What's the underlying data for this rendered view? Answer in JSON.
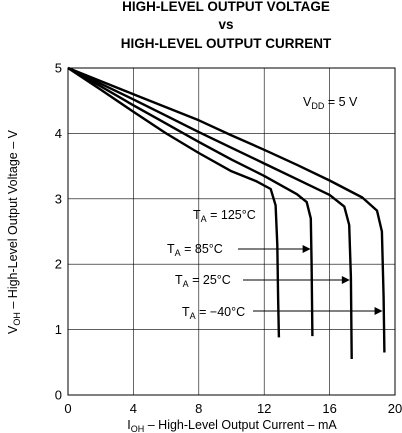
{
  "chart_data": {
    "type": "line",
    "title_lines": [
      "HIGH-LEVEL OUTPUT VOLTAGE",
      "vs",
      "HIGH-LEVEL OUTPUT CURRENT"
    ],
    "xlabel_main": "I",
    "xlabel_sub": "OH",
    "xlabel_rest": " – High-Level Output Current – mA",
    "ylabel_main": "V",
    "ylabel_sub": "OH",
    "ylabel_rest": " – High-Level Output Voltage – V",
    "xlim": [
      0,
      20
    ],
    "ylim": [
      0,
      5
    ],
    "xticks": [
      "0",
      "4",
      "8",
      "12",
      "16",
      "20"
    ],
    "yticks": [
      "0",
      "1",
      "2",
      "3",
      "4",
      "5"
    ],
    "grid": true,
    "supply_note": {
      "main": "V",
      "sub": "DD",
      "rest": " = 5 V"
    },
    "series": [
      {
        "label_main": "T",
        "label_sub": "A",
        "label_rest": " = 125°C",
        "points": [
          [
            0,
            5.0
          ],
          [
            2,
            4.67
          ],
          [
            4,
            4.33
          ],
          [
            6,
            4.0
          ],
          [
            8,
            3.7
          ],
          [
            10,
            3.42
          ],
          [
            11.5,
            3.27
          ],
          [
            12.4,
            3.15
          ],
          [
            12.7,
            2.9
          ],
          [
            12.8,
            2.3
          ],
          [
            12.85,
            1.5
          ],
          [
            12.9,
            0.88
          ]
        ]
      },
      {
        "label_main": "T",
        "label_sub": "A",
        "label_rest": " = 85°C",
        "points": [
          [
            0,
            5.0
          ],
          [
            2,
            4.72
          ],
          [
            4,
            4.43
          ],
          [
            6,
            4.15
          ],
          [
            8,
            3.87
          ],
          [
            10,
            3.6
          ],
          [
            12,
            3.35
          ],
          [
            14,
            3.07
          ],
          [
            14.6,
            2.95
          ],
          [
            14.85,
            2.7
          ],
          [
            14.9,
            2.0
          ],
          [
            14.95,
            0.9
          ]
        ]
      },
      {
        "label_main": "T",
        "label_sub": "A",
        "label_rest": " = 25°C",
        "points": [
          [
            0,
            5.0
          ],
          [
            2,
            4.76
          ],
          [
            4,
            4.52
          ],
          [
            6,
            4.27
          ],
          [
            8,
            4.02
          ],
          [
            10,
            3.78
          ],
          [
            12,
            3.54
          ],
          [
            14,
            3.3
          ],
          [
            16,
            3.06
          ],
          [
            16.9,
            2.88
          ],
          [
            17.2,
            2.6
          ],
          [
            17.3,
            1.8
          ],
          [
            17.35,
            0.55
          ]
        ]
      },
      {
        "label_main": "T",
        "label_sub": "A",
        "label_rest": " = −40°C",
        "points": [
          [
            0,
            5.0
          ],
          [
            2,
            4.8
          ],
          [
            4,
            4.6
          ],
          [
            6,
            4.4
          ],
          [
            8,
            4.2
          ],
          [
            10,
            3.97
          ],
          [
            12,
            3.75
          ],
          [
            14,
            3.52
          ],
          [
            16,
            3.28
          ],
          [
            18,
            3.02
          ],
          [
            18.9,
            2.82
          ],
          [
            19.2,
            2.5
          ],
          [
            19.3,
            1.5
          ],
          [
            19.35,
            0.65
          ]
        ]
      }
    ]
  }
}
